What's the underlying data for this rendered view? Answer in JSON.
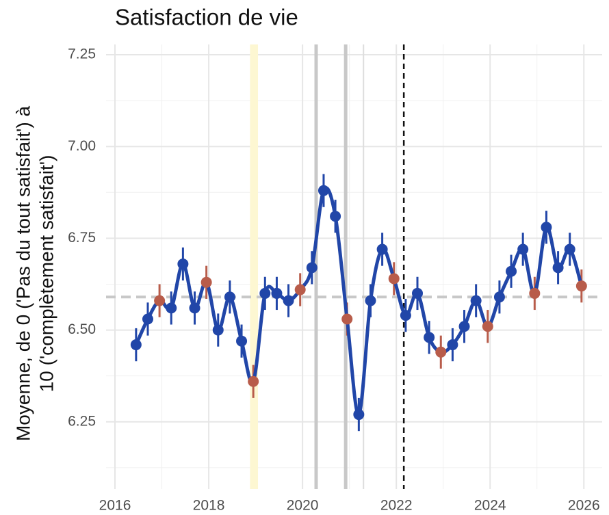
{
  "chart_data": {
    "type": "line",
    "title": "Satisfaction de vie",
    "y_label_lines": [
      "Moyenne, de 0 ('Pas du tout satisfait') à",
      "10 ('complètement satisfait')"
    ],
    "xlim": [
      2015.81,
      2026.39
    ],
    "ylim": [
      6.067,
      7.278
    ],
    "xticks": [
      2016,
      2018,
      2020,
      2022,
      2024,
      2026
    ],
    "xminor_ticks": [
      2017,
      2019,
      2021,
      2023,
      2025
    ],
    "yticks": [
      {
        "value": 6.25,
        "label": "6.25"
      },
      {
        "value": 6.5,
        "label": "6.50"
      },
      {
        "value": 6.75,
        "label": "6.75"
      },
      {
        "value": 7,
        "label": "7.00"
      },
      {
        "value": 7.25,
        "label": "7.25"
      }
    ],
    "yminor_ticks": [
      6.125,
      6.375,
      6.625,
      6.875,
      7.125
    ],
    "grid": true,
    "hline": {
      "value": 6.59,
      "color": "#c8c8c8"
    },
    "band": {
      "x0": 2018.88,
      "x1": 2019.05,
      "color": "#fdf7d2"
    },
    "vlines": [
      {
        "value": 2020.29,
        "color": "#c8c8c8",
        "width": 5
      },
      {
        "value": 2020.92,
        "color": "#c8c8c8",
        "width": 5
      },
      {
        "value": 2021.3,
        "color": "#dddddd",
        "width": 2
      },
      {
        "value": 2022.16,
        "color": "#111111",
        "width": 2.5,
        "dashed": true
      }
    ],
    "series": [
      {
        "color": "#2146a8",
        "highlight_color": "#b85c4a",
        "x": [
          2016.45,
          2016.7,
          2016.95,
          2017.2,
          2017.45,
          2017.7,
          2017.95,
          2018.2,
          2018.45,
          2018.7,
          2018.95,
          2019.2,
          2019.45,
          2019.7,
          2019.95,
          2020.2,
          2020.45,
          2020.7,
          2020.95,
          2021.2,
          2021.45,
          2021.7,
          2021.95,
          2022.2,
          2022.45,
          2022.7,
          2022.95,
          2023.2,
          2023.45,
          2023.7,
          2023.95,
          2024.2,
          2024.45,
          2024.7,
          2024.95,
          2025.2,
          2025.45,
          2025.7,
          2025.95
        ],
        "values": [
          6.46,
          6.53,
          6.58,
          6.56,
          6.68,
          6.56,
          6.63,
          6.5,
          6.59,
          6.47,
          6.36,
          6.6,
          6.6,
          6.58,
          6.61,
          6.67,
          6.88,
          6.81,
          6.53,
          6.27,
          6.58,
          6.72,
          6.64,
          6.54,
          6.6,
          6.48,
          6.44,
          6.46,
          6.51,
          6.58,
          6.51,
          6.59,
          6.66,
          6.72,
          6.6,
          6.78,
          6.67,
          6.72,
          6.62
        ],
        "errors": [
          0.045,
          0.045,
          0.045,
          0.045,
          0.045,
          0.045,
          0.045,
          0.045,
          0.045,
          0.045,
          0.045,
          0.045,
          0.045,
          0.045,
          0.045,
          0.045,
          0.045,
          0.045,
          0.045,
          0.045,
          0.045,
          0.045,
          0.045,
          0.045,
          0.045,
          0.045,
          0.045,
          0.045,
          0.045,
          0.045,
          0.045,
          0.045,
          0.045,
          0.045,
          0.045,
          0.045,
          0.045,
          0.045,
          0.045
        ],
        "highlighted": [
          false,
          false,
          true,
          false,
          false,
          false,
          true,
          false,
          false,
          false,
          true,
          false,
          false,
          false,
          true,
          false,
          false,
          false,
          true,
          false,
          false,
          false,
          true,
          false,
          false,
          false,
          true,
          false,
          false,
          false,
          true,
          false,
          false,
          false,
          true,
          false,
          false,
          false,
          true
        ]
      }
    ]
  }
}
